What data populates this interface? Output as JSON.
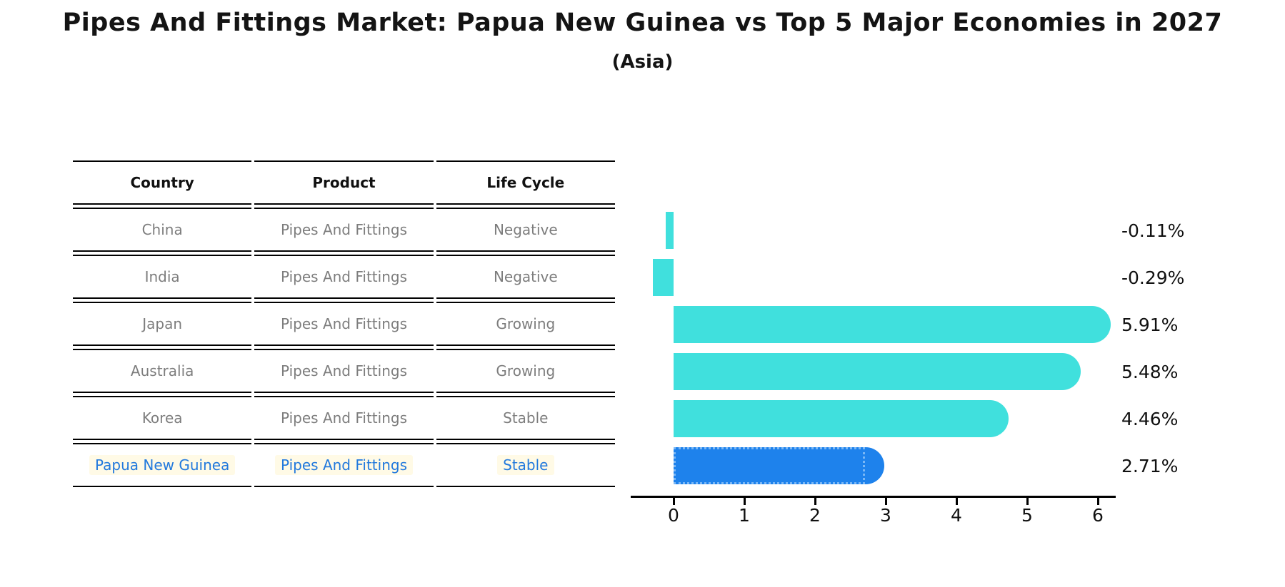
{
  "title": "Pipes And Fittings Market: Papua New Guinea vs Top 5 Major Economies in 2027",
  "subtitle": "(Asia)",
  "table": {
    "headers": [
      "Country",
      "Product",
      "Life Cycle"
    ],
    "rows": [
      {
        "country": "China",
        "product": "Pipes And Fittings",
        "life_cycle": "Negative",
        "highlight": false
      },
      {
        "country": "India",
        "product": "Pipes And Fittings",
        "life_cycle": "Negative",
        "highlight": false
      },
      {
        "country": "Japan",
        "product": "Pipes And Fittings",
        "life_cycle": "Growing",
        "highlight": false
      },
      {
        "country": "Australia",
        "product": "Pipes And Fittings",
        "life_cycle": "Growing",
        "highlight": false
      },
      {
        "country": "Korea",
        "product": "Pipes And Fittings",
        "life_cycle": "Stable",
        "highlight": false
      },
      {
        "country": "Papua New Guinea",
        "product": "Pipes And Fittings",
        "life_cycle": "Stable",
        "highlight": true
      }
    ]
  },
  "chart_data": {
    "type": "bar",
    "orientation": "horizontal",
    "title": "Pipes And Fittings Market: Papua New Guinea vs Top 5 Major Economies in 2027 (Asia)",
    "categories": [
      "China",
      "India",
      "Japan",
      "Australia",
      "Korea",
      "Papua New Guinea"
    ],
    "values": [
      -0.11,
      -0.29,
      5.91,
      5.48,
      4.46,
      2.71
    ],
    "value_labels": [
      "-0.11%",
      "-0.29%",
      "5.91%",
      "5.48%",
      "4.46%",
      "2.71%"
    ],
    "x_ticks": [
      "0",
      "1",
      "2",
      "3",
      "4",
      "5",
      "6"
    ],
    "xlim": [
      -0.65,
      6.25
    ],
    "xlabel": "",
    "ylabel": "",
    "grid": false,
    "legend": "none",
    "colors": {
      "bar_default": "#40e0dd",
      "bar_highlight": "#1e82ec",
      "highlight_border": "#7ab7f5",
      "value_text": "#111111",
      "table_text": "#7d7d7d",
      "highlight_text": "#2279dd"
    }
  }
}
